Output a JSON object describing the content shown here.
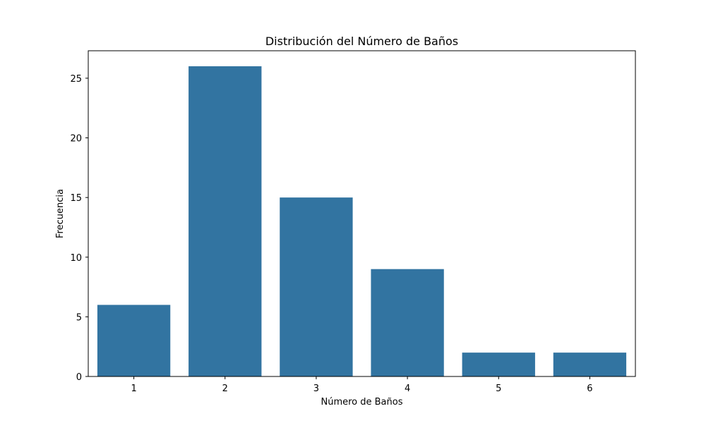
{
  "chart_data": {
    "type": "bar",
    "title": "Distribución del Número de Baños",
    "xlabel": "Número de Baños",
    "ylabel": "Frecuencia",
    "categories": [
      "1",
      "2",
      "3",
      "4",
      "5",
      "6"
    ],
    "values": [
      6,
      26,
      15,
      9,
      2,
      2
    ],
    "ylim": [
      0,
      27.3
    ],
    "yticks": [
      0,
      5,
      10,
      15,
      20,
      25
    ],
    "bar_color": "#3274a1",
    "grid": false,
    "legend": "none"
  }
}
